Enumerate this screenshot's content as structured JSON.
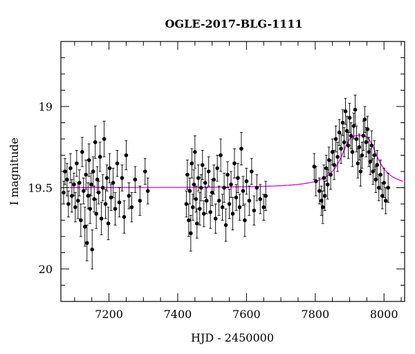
{
  "chart_data": {
    "type": "scatter",
    "title": "OGLE-2017-BLG-1111",
    "xlabel": "HJD - 2450000",
    "ylabel": "I magnitude",
    "xlim": [
      7060,
      8060
    ],
    "ylim": [
      20.2,
      18.6
    ],
    "y_inverted": true,
    "x_ticks": [
      7200,
      7400,
      7600,
      7800,
      8000
    ],
    "y_ticks": [
      19,
      19.5,
      20
    ],
    "x_tick_labels": [
      "7200",
      "7400",
      "7600",
      "7800",
      "8000"
    ],
    "y_tick_labels": [
      "19",
      "19.5",
      "20"
    ],
    "grid": false,
    "series": [
      {
        "kind": "points_with_errorbars",
        "color": "#000000",
        "points": [
          [
            7068,
            19.53,
            0.07
          ],
          [
            7072,
            19.4,
            0.08
          ],
          [
            7078,
            19.45,
            0.1
          ],
          [
            7082,
            19.6,
            0.08
          ],
          [
            7088,
            19.38,
            0.09
          ],
          [
            7092,
            19.55,
            0.1
          ],
          [
            7098,
            19.48,
            0.07
          ],
          [
            7102,
            19.62,
            0.09
          ],
          [
            7106,
            19.35,
            0.08
          ],
          [
            7110,
            19.58,
            0.11
          ],
          [
            7114,
            19.47,
            0.08
          ],
          [
            7118,
            19.7,
            0.1
          ],
          [
            7122,
            19.28,
            0.09
          ],
          [
            7126,
            19.52,
            0.08
          ],
          [
            7130,
            19.74,
            0.12
          ],
          [
            7133,
            19.42,
            0.09
          ],
          [
            7136,
            19.84,
            0.11
          ],
          [
            7139,
            19.55,
            0.08
          ],
          [
            7142,
            19.33,
            0.1
          ],
          [
            7145,
            19.63,
            0.09
          ],
          [
            7148,
            19.48,
            0.07
          ],
          [
            7151,
            19.88,
            0.12
          ],
          [
            7154,
            19.4,
            0.09
          ],
          [
            7157,
            19.57,
            0.08
          ],
          [
            7160,
            19.22,
            0.1
          ],
          [
            7163,
            19.66,
            0.09
          ],
          [
            7166,
            19.45,
            0.08
          ],
          [
            7170,
            19.53,
            0.07
          ],
          [
            7174,
            19.31,
            0.09
          ],
          [
            7178,
            19.69,
            0.1
          ],
          [
            7182,
            19.5,
            0.08
          ],
          [
            7186,
            19.2,
            0.11
          ],
          [
            7190,
            19.6,
            0.09
          ],
          [
            7194,
            19.44,
            0.08
          ],
          [
            7198,
            19.72,
            0.1
          ],
          [
            7202,
            19.38,
            0.09
          ],
          [
            7206,
            19.56,
            0.08
          ],
          [
            7212,
            19.47,
            0.09
          ],
          [
            7218,
            19.63,
            0.1
          ],
          [
            7224,
            19.35,
            0.08
          ],
          [
            7230,
            19.59,
            0.09
          ],
          [
            7238,
            19.44,
            0.08
          ],
          [
            7244,
            19.68,
            0.1
          ],
          [
            7250,
            19.3,
            0.09
          ],
          [
            7258,
            19.55,
            0.08
          ],
          [
            7266,
            19.62,
            0.09
          ],
          [
            7276,
            19.45,
            0.08
          ],
          [
            7290,
            19.58,
            0.09
          ],
          [
            7305,
            19.4,
            0.08
          ],
          [
            7313,
            19.52,
            0.08
          ],
          [
            7425,
            19.6,
            0.08
          ],
          [
            7428,
            19.42,
            0.09
          ],
          [
            7432,
            19.7,
            0.1
          ],
          [
            7435,
            19.52,
            0.08
          ],
          [
            7438,
            19.78,
            0.11
          ],
          [
            7441,
            19.35,
            0.09
          ],
          [
            7444,
            19.62,
            0.08
          ],
          [
            7447,
            19.48,
            0.09
          ],
          [
            7450,
            19.28,
            0.1
          ],
          [
            7453,
            19.57,
            0.08
          ],
          [
            7456,
            19.72,
            0.09
          ],
          [
            7460,
            19.44,
            0.08
          ],
          [
            7464,
            19.63,
            0.1
          ],
          [
            7468,
            19.5,
            0.08
          ],
          [
            7472,
            19.36,
            0.09
          ],
          [
            7476,
            19.66,
            0.08
          ],
          [
            7480,
            19.47,
            0.09
          ],
          [
            7484,
            19.58,
            0.08
          ],
          [
            7490,
            19.4,
            0.09
          ],
          [
            7495,
            19.65,
            0.1
          ],
          [
            7500,
            19.53,
            0.08
          ],
          [
            7505,
            19.45,
            0.09
          ],
          [
            7510,
            19.69,
            0.09
          ],
          [
            7515,
            19.38,
            0.08
          ],
          [
            7520,
            19.58,
            0.09
          ],
          [
            7525,
            19.3,
            0.1
          ],
          [
            7530,
            19.62,
            0.08
          ],
          [
            7535,
            19.5,
            0.09
          ],
          [
            7540,
            19.73,
            0.1
          ],
          [
            7545,
            19.42,
            0.08
          ],
          [
            7550,
            19.6,
            0.09
          ],
          [
            7555,
            19.48,
            0.08
          ],
          [
            7560,
            19.66,
            0.1
          ],
          [
            7565,
            19.35,
            0.09
          ],
          [
            7570,
            19.56,
            0.08
          ],
          [
            7575,
            19.44,
            0.09
          ],
          [
            7580,
            19.62,
            0.08
          ],
          [
            7585,
            19.26,
            0.1
          ],
          [
            7590,
            19.52,
            0.09
          ],
          [
            7595,
            19.7,
            0.1
          ],
          [
            7600,
            19.46,
            0.08
          ],
          [
            7608,
            19.58,
            0.09
          ],
          [
            7615,
            19.4,
            0.08
          ],
          [
            7622,
            19.64,
            0.09
          ],
          [
            7630,
            19.5,
            0.08
          ],
          [
            7640,
            19.57,
            0.09
          ],
          [
            7650,
            19.62,
            0.08
          ],
          [
            7656,
            19.55,
            0.09
          ],
          [
            7797,
            19.37,
            0.08
          ],
          [
            7802,
            19.46,
            0.09
          ],
          [
            7812,
            19.52,
            0.08
          ],
          [
            7818,
            19.58,
            0.09
          ],
          [
            7822,
            19.62,
            0.1
          ],
          [
            7825,
            19.44,
            0.08
          ],
          [
            7828,
            19.55,
            0.09
          ],
          [
            7832,
            19.38,
            0.08
          ],
          [
            7836,
            19.48,
            0.09
          ],
          [
            7840,
            19.33,
            0.08
          ],
          [
            7845,
            19.42,
            0.09
          ],
          [
            7850,
            19.28,
            0.08
          ],
          [
            7855,
            19.36,
            0.09
          ],
          [
            7860,
            19.2,
            0.08
          ],
          [
            7865,
            19.31,
            0.09
          ],
          [
            7870,
            19.16,
            0.08
          ],
          [
            7875,
            19.26,
            0.09
          ],
          [
            7880,
            19.1,
            0.08
          ],
          [
            7884,
            19.22,
            0.09
          ],
          [
            7888,
            19.03,
            0.08
          ],
          [
            7892,
            19.15,
            0.09
          ],
          [
            7896,
            19.24,
            0.08
          ],
          [
            7900,
            19.07,
            0.09
          ],
          [
            7904,
            19.18,
            0.08
          ],
          [
            7908,
            19.28,
            0.09
          ],
          [
            7912,
            19.12,
            0.08
          ],
          [
            7916,
            19.02,
            0.09
          ],
          [
            7920,
            19.2,
            0.08
          ],
          [
            7924,
            19.35,
            0.09
          ],
          [
            7928,
            19.25,
            0.08
          ],
          [
            7932,
            19.4,
            0.09
          ],
          [
            7936,
            19.3,
            0.08
          ],
          [
            7940,
            19.18,
            0.09
          ],
          [
            7944,
            19.08,
            0.08
          ],
          [
            7948,
            19.22,
            0.09
          ],
          [
            7952,
            19.14,
            0.08
          ],
          [
            7956,
            19.28,
            0.09
          ],
          [
            7960,
            19.34,
            0.08
          ],
          [
            7964,
            19.24,
            0.09
          ],
          [
            7968,
            19.4,
            0.08
          ],
          [
            7972,
            19.3,
            0.09
          ],
          [
            7976,
            19.45,
            0.08
          ],
          [
            7980,
            19.36,
            0.09
          ],
          [
            7985,
            19.5,
            0.08
          ],
          [
            7990,
            19.42,
            0.09
          ],
          [
            7995,
            19.55,
            0.08
          ],
          [
            8000,
            19.47,
            0.09
          ],
          [
            8005,
            19.58,
            0.08
          ],
          [
            8012,
            19.5,
            0.09
          ]
        ]
      },
      {
        "kind": "model_curve",
        "color": "#e000e0",
        "baseline": 19.5,
        "peak_time": 7928,
        "peak_magnitude": 19.18,
        "timescale": 45
      }
    ]
  }
}
